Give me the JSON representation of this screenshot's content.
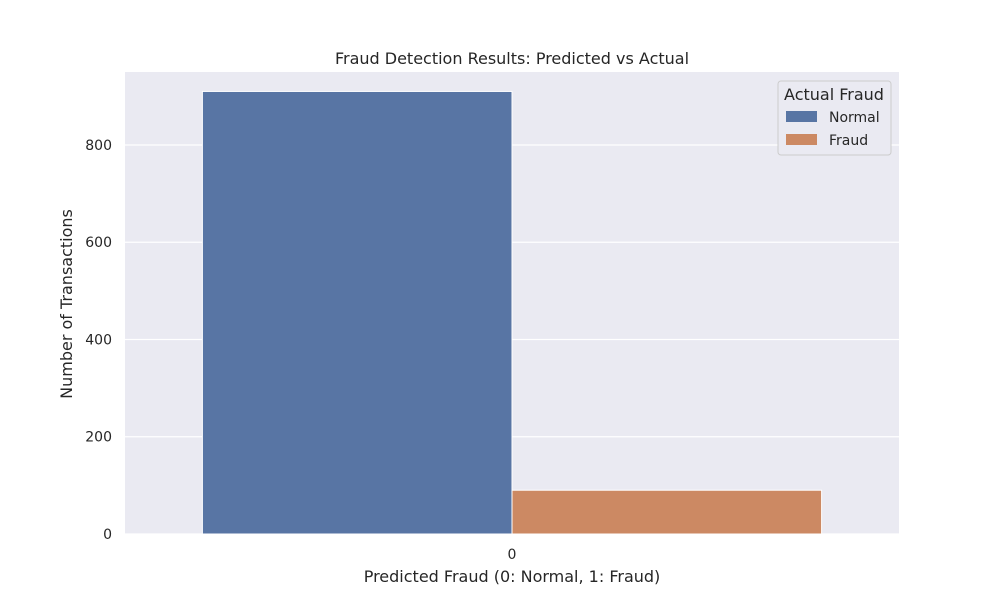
{
  "chart_data": {
    "type": "bar",
    "title": "Fraud Detection Results: Predicted vs Actual",
    "xlabel": "Predicted Fraud (0: Normal, 1: Fraud)",
    "ylabel": "Number of Transactions",
    "categories": [
      "0"
    ],
    "series": [
      {
        "name": "Normal",
        "values": [
          910
        ],
        "color": "#5875a4"
      },
      {
        "name": "Fraud",
        "values": [
          90
        ],
        "color": "#cc8963"
      }
    ],
    "ylim": [
      0,
      950
    ],
    "yticks": [
      0,
      200,
      400,
      600,
      800
    ],
    "ytick_labels": [
      "0",
      "200",
      "400",
      "600",
      "800"
    ],
    "legend": {
      "title": "Actual Fraud",
      "position": "top-right"
    },
    "grid": true,
    "background": "#eaeaf2"
  }
}
